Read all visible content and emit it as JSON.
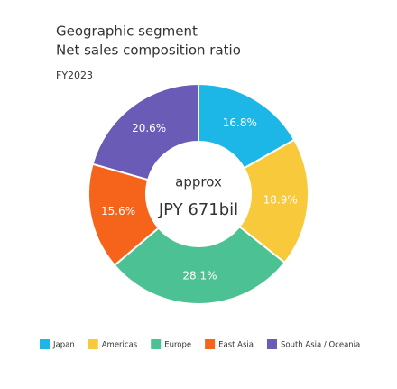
{
  "chart_data": {
    "type": "donut",
    "title": "Geographic segment",
    "subtitle": "Net sales composition ratio",
    "period": "FY2023",
    "center_text": [
      "approx",
      "JPY 671bil"
    ],
    "categories": [
      "Japan",
      "Americas",
      "Europe",
      "East Asia",
      "South Asia / Oceania"
    ],
    "values": [
      16.8,
      18.9,
      28.1,
      15.6,
      20.6
    ],
    "value_labels": [
      "16.8%",
      "18.9%",
      "28.1%",
      "15.6%",
      "20.6%"
    ],
    "colors": [
      "#1db7e7",
      "#f9c93c",
      "#4cc193",
      "#f6641c",
      "#6a5bb6"
    ],
    "legend": "bottom"
  }
}
